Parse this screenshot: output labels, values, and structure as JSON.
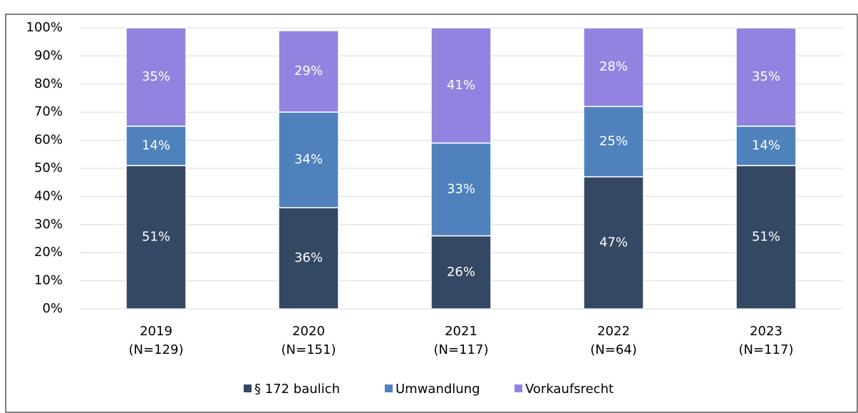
{
  "chart_data": {
    "type": "stacked_bar",
    "categories": [
      [
        "2019",
        "(N=129)"
      ],
      [
        "2020",
        "(N=151)"
      ],
      [
        "2021",
        "(N=117)"
      ],
      [
        "2022",
        "(N=64)"
      ],
      [
        "2023",
        "(N=117)"
      ]
    ],
    "series": [
      {
        "name": "§ 172 baulich",
        "color": "#344863",
        "values": [
          51,
          36,
          26,
          47,
          51
        ],
        "value_labels": [
          "51%",
          "36%",
          "26%",
          "47%",
          "51%"
        ]
      },
      {
        "name": "Umwandlung",
        "color": "#4f81bd",
        "values": [
          14,
          34,
          33,
          25,
          14
        ],
        "value_labels": [
          "14%",
          "34%",
          "33%",
          "25%",
          "14%"
        ]
      },
      {
        "name": "Vorkaufsrecht",
        "color": "#9383e0",
        "values": [
          35,
          29,
          41,
          28,
          35
        ],
        "value_labels": [
          "35%",
          "29%",
          "41%",
          "28%",
          "35%"
        ]
      }
    ],
    "ylim": [
      0,
      100
    ],
    "yticks": [
      {
        "value": 0,
        "label": "0%"
      },
      {
        "value": 10,
        "label": "10%"
      },
      {
        "value": 20,
        "label": "20%"
      },
      {
        "value": 30,
        "label": "30%"
      },
      {
        "value": 40,
        "label": "40%"
      },
      {
        "value": 50,
        "label": "50%"
      },
      {
        "value": 60,
        "label": "60%"
      },
      {
        "value": 70,
        "label": "70%"
      },
      {
        "value": 80,
        "label": "80%"
      },
      {
        "value": 90,
        "label": "90%"
      },
      {
        "value": 100,
        "label": "100%"
      }
    ],
    "grid": true,
    "legend": "bottom"
  }
}
